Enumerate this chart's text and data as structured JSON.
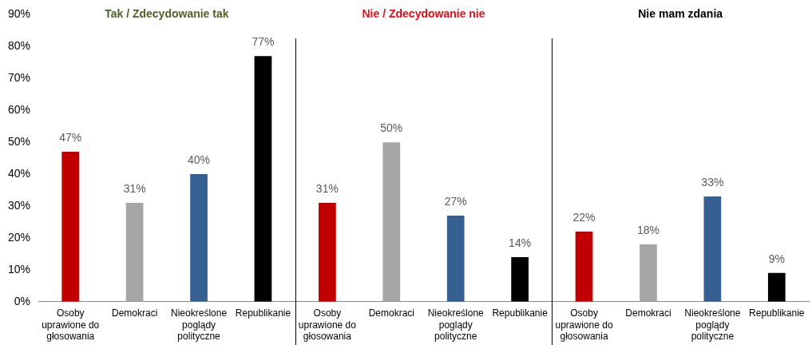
{
  "chart_data": {
    "type": "bar",
    "categories": [
      "Osoby uprawione do głosowania",
      "Demokraci",
      "Nieokreślone poglądy polityczne",
      "Republikanie",
      "Osoby uprawione do głosowania",
      "Demokraci",
      "Nieokreślone poglądy polityczne",
      "Republikanie",
      "Osoby uprawione do głosowania",
      "Demokraci",
      "Nieokreślone poglądy polityczne",
      "Republikanie"
    ],
    "values": [
      47,
      31,
      40,
      77,
      31,
      50,
      27,
      14,
      22,
      18,
      33,
      9
    ],
    "colors": [
      "#c00000",
      "#a6a6a6",
      "#376092",
      "#000000",
      "#c00000",
      "#a6a6a6",
      "#376092",
      "#000000",
      "#c00000",
      "#a6a6a6",
      "#376092",
      "#000000"
    ],
    "value_labels": [
      "47%",
      "31%",
      "40%",
      "77%",
      "31%",
      "50%",
      "27%",
      "14%",
      "22%",
      "18%",
      "33%",
      "9%"
    ],
    "annotations": [
      "Tak / Zdecydowanie tak",
      "Nie / Zdecydowanie nie",
      "Nie mam zdania"
    ],
    "ylim": [
      0,
      90
    ],
    "yticks": [
      {
        "value": 0,
        "label": "0%"
      },
      {
        "value": 10,
        "label": "10%"
      },
      {
        "value": 20,
        "label": "20%"
      },
      {
        "value": 30,
        "label": "30%"
      },
      {
        "value": 40,
        "label": "40%"
      },
      {
        "value": 50,
        "label": "50%"
      },
      {
        "value": 60,
        "label": "60%"
      },
      {
        "value": 70,
        "label": "70%"
      },
      {
        "value": 80,
        "label": "80%"
      },
      {
        "value": 90,
        "label": "90%"
      }
    ],
    "grid": false,
    "legend": false
  }
}
